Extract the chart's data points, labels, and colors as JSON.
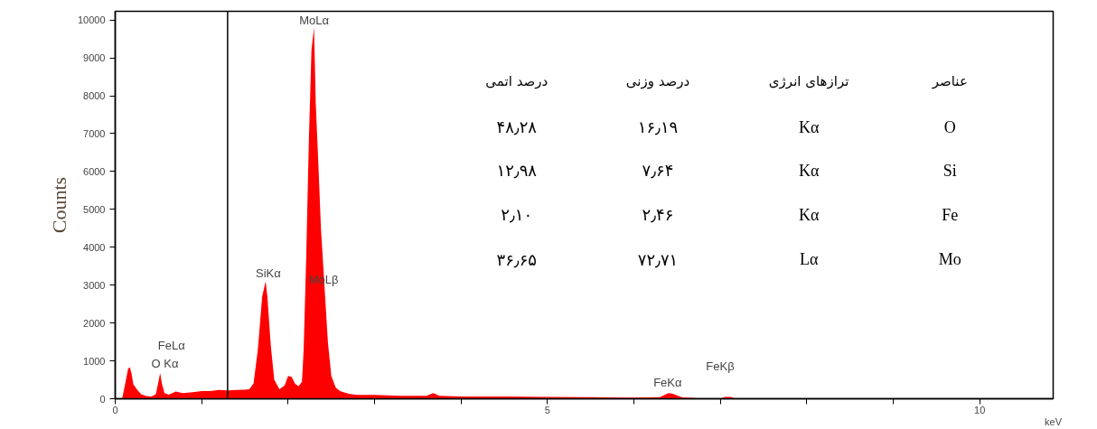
{
  "chart_data": {
    "type": "area",
    "xlabel": "keV",
    "ylabel": "Counts",
    "color": "#ff0000",
    "x": [
      0.05,
      0.08,
      0.12,
      0.15,
      0.17,
      0.19,
      0.21,
      0.25,
      0.3,
      0.36,
      0.42,
      0.47,
      0.5,
      0.52,
      0.54,
      0.57,
      0.62,
      0.7,
      0.78,
      0.9,
      1.0,
      1.1,
      1.2,
      1.3,
      1.4,
      1.5,
      1.55,
      1.6,
      1.65,
      1.7,
      1.74,
      1.76,
      1.8,
      1.84,
      1.9,
      1.96,
      2.0,
      2.04,
      2.08,
      2.12,
      2.16,
      2.18,
      2.21,
      2.24,
      2.27,
      2.3,
      2.32,
      2.35,
      2.38,
      2.42,
      2.46,
      2.5,
      2.55,
      2.6,
      2.7,
      2.8,
      3.0,
      3.3,
      3.6,
      3.68,
      3.75,
      4.0,
      4.5,
      5.0,
      5.5,
      6.0,
      6.3,
      6.4,
      6.45,
      6.55,
      6.8,
      7.0,
      7.05,
      7.12,
      7.18
    ],
    "values": [
      0,
      0,
      450,
      800,
      830,
      650,
      380,
      250,
      120,
      70,
      60,
      120,
      450,
      680,
      400,
      150,
      110,
      190,
      150,
      170,
      200,
      200,
      230,
      220,
      230,
      240,
      250,
      400,
      1300,
      2700,
      3100,
      2700,
      1400,
      500,
      250,
      350,
      600,
      580,
      400,
      330,
      450,
      1300,
      3800,
      6800,
      9200,
      9800,
      7800,
      6200,
      4500,
      3000,
      1500,
      600,
      300,
      200,
      130,
      100,
      100,
      80,
      80,
      150,
      80,
      60,
      60,
      50,
      40,
      30,
      40,
      150,
      130,
      40,
      0,
      0,
      50,
      50,
      0
    ],
    "xlim": [
      0,
      10.85
    ],
    "ylim": [
      0,
      10230
    ],
    "xticks": [
      0,
      {
        "value": 1,
        "label": null
      },
      {
        "value": 2,
        "label": null
      },
      {
        "value": 3,
        "label": null
      },
      {
        "value": 4,
        "label": null
      },
      5,
      {
        "value": 6,
        "label": null
      },
      {
        "value": 7,
        "label": null
      },
      {
        "value": 8,
        "label": null
      },
      {
        "value": 9,
        "label": null
      },
      10
    ],
    "yticks": [
      0,
      1000,
      2000,
      3000,
      4000,
      5000,
      6000,
      7000,
      8000,
      9000,
      10000
    ],
    "ref_lines": [
      {
        "axis": "x",
        "value": 1.3,
        "color": "#000000"
      }
    ],
    "annotations": [
      {
        "text": "MoLα",
        "x": 2.3,
        "y": 9800
      },
      {
        "text": "SiKα",
        "x": 1.77,
        "y": 3120
      },
      {
        "text": "MoLβ",
        "x": 2.41,
        "y": 2950
      },
      {
        "text": "FeKα",
        "x": 6.39,
        "y": 230
      },
      "FeLα",
      "O Kα",
      "FeKβ",
      "عناصر",
      "ترازهای انرژی",
      "درصد وزنی",
      "درصد اتمی",
      "O",
      "Kα",
      "۱۶٫۱۹",
      "۴۸٫۲۸",
      "Si",
      "Kα",
      "۷٫۶۴",
      "۱۲٫۹۸",
      "Fe",
      "Kα",
      "۲٫۴۶",
      "۲٫۱۰",
      "Mo",
      "Lα",
      "۷۲٫۷۱",
      "۳۶٫۶۵"
    ]
  }
}
